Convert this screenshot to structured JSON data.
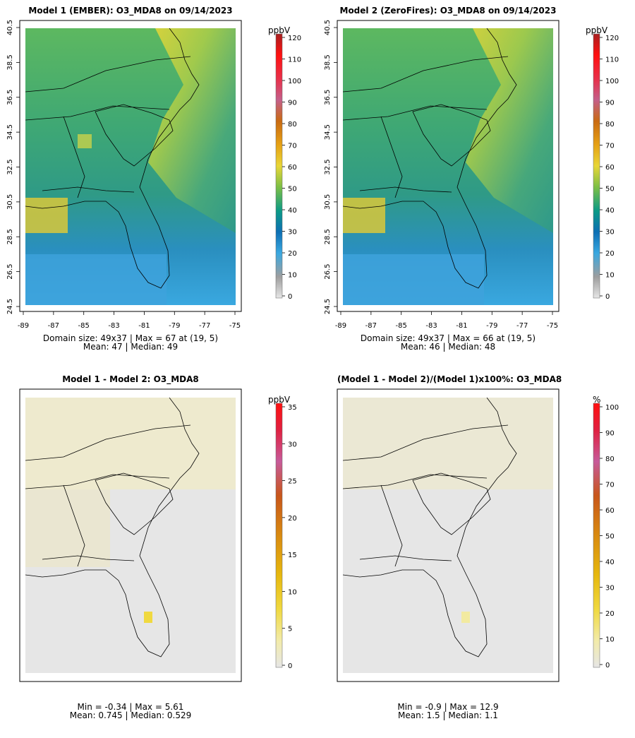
{
  "panels": [
    {
      "title": "Model 1 (EMBER): O3_MDA8 on 09/14/2023",
      "unit": "ppbV",
      "stat_line1": "Domain size: 49x37 | Max = 67 at (19, 5)",
      "stat_line2": "Mean: 47 |  Median: 49",
      "colorbar_ticks": [
        "0",
        "10",
        "20",
        "30",
        "40",
        "50",
        "60",
        "70",
        "80",
        "90",
        "100",
        "110",
        "120"
      ]
    },
    {
      "title": "Model 2 (ZeroFires): O3_MDA8 on 09/14/2023",
      "unit": "ppbV",
      "stat_line1": "Domain size: 49x37 | Max = 66 at (19, 5)",
      "stat_line2": "Mean: 46 |  Median: 48",
      "colorbar_ticks": [
        "0",
        "10",
        "20",
        "30",
        "40",
        "50",
        "60",
        "70",
        "80",
        "90",
        "100",
        "110",
        "120"
      ]
    },
    {
      "title": "Model 1 - Model 2: O3_MDA8",
      "unit": "ppbV",
      "stat_line1": "Min = -0.34 | Max = 5.61",
      "stat_line2": "Mean: 0.745 |  Median: 0.529",
      "colorbar_ticks": [
        "0",
        "5",
        "10",
        "15",
        "20",
        "25",
        "30",
        "35"
      ]
    },
    {
      "title": "(Model 1 - Model 2)/(Model 1)x100%: O3_MDA8",
      "unit": "%",
      "stat_line1": "Min = -0.9 | Max = 12.9",
      "stat_line2": "Mean: 1.5 |  Median: 1.1",
      "colorbar_ticks": [
        "0",
        "10",
        "20",
        "30",
        "40",
        "50",
        "60",
        "70",
        "80",
        "90",
        "100"
      ]
    }
  ],
  "axes": {
    "x_ticks": [
      "-89",
      "-87",
      "-85",
      "-83",
      "-81",
      "-79",
      "-77",
      "-75"
    ],
    "y_ticks": [
      "24.5",
      "26.5",
      "28.5",
      "30.5",
      "32.5",
      "34.5",
      "36.5",
      "38.5",
      "40.5"
    ]
  },
  "colors": {
    "abs_scale": [
      "#e6e6e6",
      "#9e9e9e",
      "#3aa8e0",
      "#0d6fb4",
      "#0b9a86",
      "#7cbf45",
      "#e8d637",
      "#e6a114",
      "#c96a12",
      "#c45f8a",
      "#e8304a",
      "#ff1010",
      "#a82020"
    ],
    "diff_scale": [
      "#e6e6e6",
      "#f2ebaa",
      "#f0d940",
      "#e6b80e",
      "#d98a10",
      "#c8561a",
      "#c75a9a",
      "#e02040",
      "#ff1010"
    ]
  }
}
